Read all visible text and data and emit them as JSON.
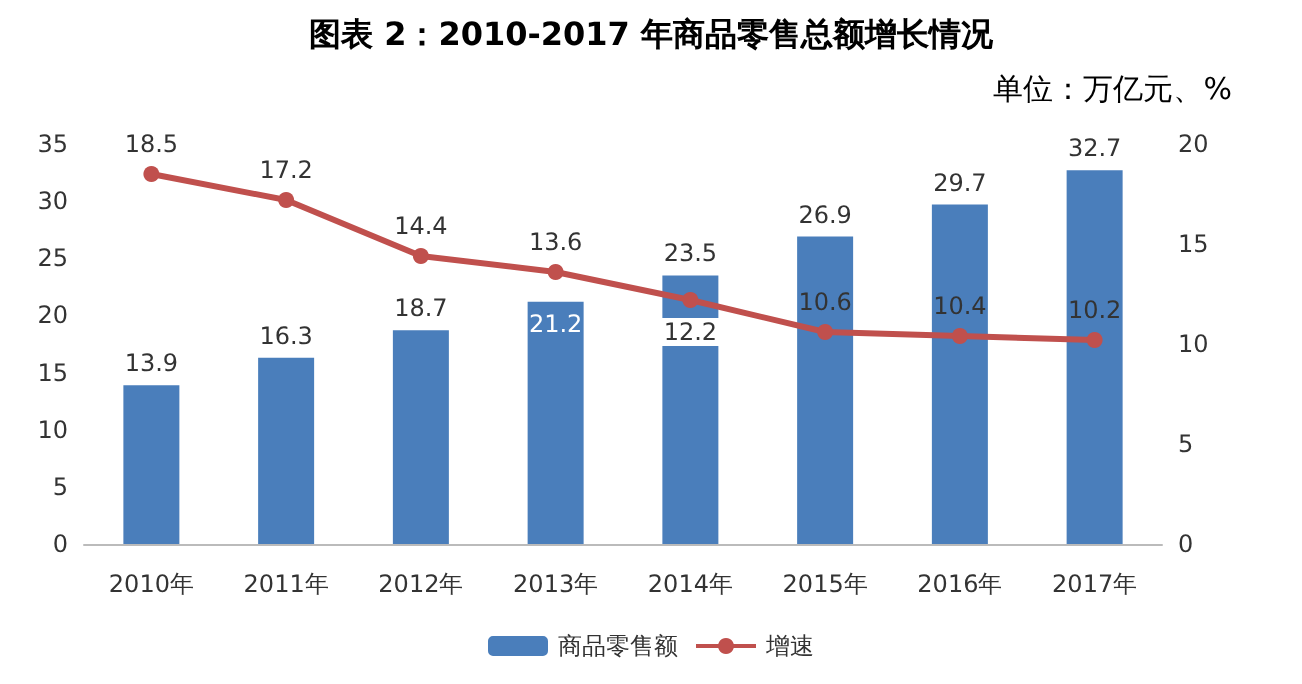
{
  "chart_data": {
    "type": "bar",
    "title": "图表 2：2010-2017 年商品零售总额增长情况",
    "subtitle": "单位：万亿元、%",
    "categories": [
      "2010年",
      "2011年",
      "2012年",
      "2013年",
      "2014年",
      "2015年",
      "2016年",
      "2017年"
    ],
    "series": [
      {
        "name": "商品零售额",
        "color": "#4a7ebb",
        "values": [
          13.9,
          16.3,
          18.7,
          21.2,
          23.5,
          26.9,
          29.7,
          32.7
        ]
      },
      {
        "name": "增速",
        "type": "line",
        "axis": "y2",
        "color": "#c0504d",
        "values": [
          18.5,
          17.2,
          14.4,
          13.6,
          12.2,
          10.6,
          10.4,
          10.2
        ]
      }
    ],
    "ylim": [
      0,
      35
    ],
    "yticks": [
      0,
      5,
      10,
      15,
      20,
      25,
      30,
      35
    ],
    "y2lim": [
      0,
      20
    ],
    "y2ticks": [
      0,
      5,
      10,
      15,
      20
    ],
    "data_labels": true,
    "legend": "bottom",
    "grid": false,
    "marker": "circle",
    "line_style": "solid"
  }
}
